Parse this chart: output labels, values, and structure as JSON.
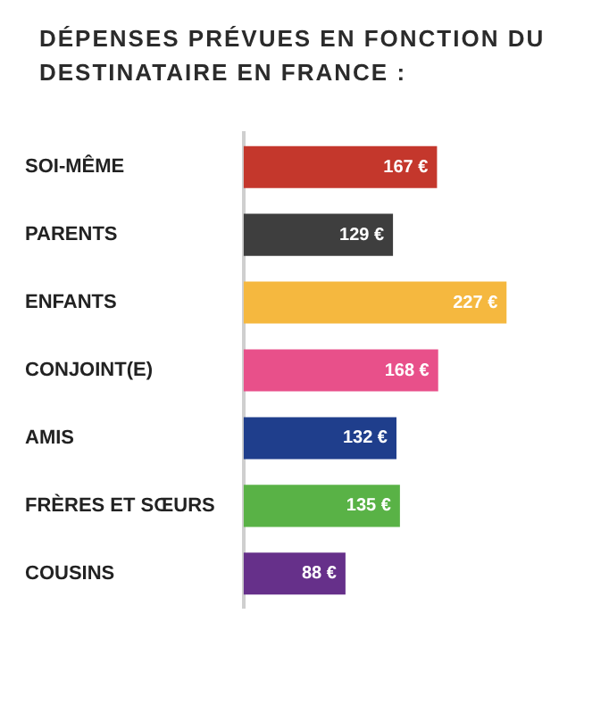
{
  "chart_data": {
    "type": "bar",
    "orientation": "horizontal",
    "title": "DÉPENSES PRÉVUES EN FONCTION DU DESTINATAIRE EN FRANCE :",
    "categories": [
      "SOI-MÊME",
      "PARENTS",
      "ENFANTS",
      "CONJOINT(E)",
      "AMIS",
      "FRÈRES ET SŒURS",
      "COUSINS"
    ],
    "values": [
      167,
      129,
      227,
      168,
      132,
      135,
      88
    ],
    "colors": [
      "#c4372c",
      "#3e3e3e",
      "#f5b83f",
      "#e8508a",
      "#1f3e8c",
      "#59b246",
      "#66308a"
    ],
    "value_labels": [
      "167 €",
      "129 €",
      "227 €",
      "168 €",
      "132 €",
      "135 €",
      "88 €"
    ],
    "tick_labels": "y",
    "legend": false
  }
}
